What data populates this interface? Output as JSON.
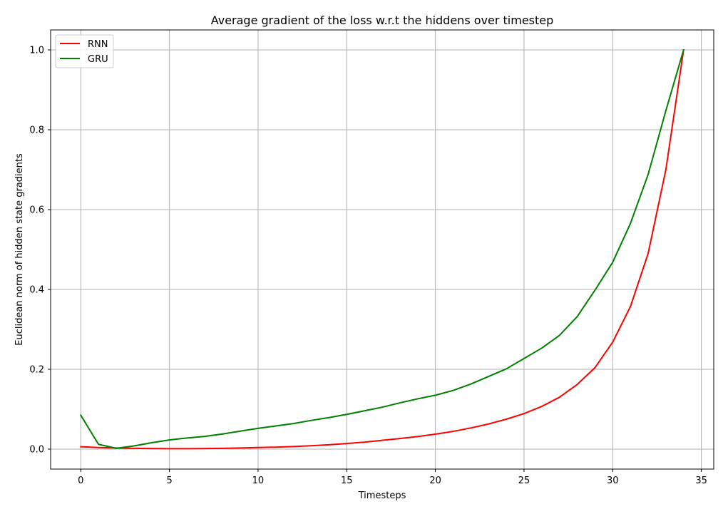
{
  "chart_data": {
    "type": "line",
    "title": "Average gradient of the loss w.r.t the hiddens over timestep",
    "xlabel": "Timesteps",
    "ylabel": "Euclidean norm of hidden state gradients",
    "xlim": [
      -1.7,
      35.7
    ],
    "ylim": [
      -0.05,
      1.05
    ],
    "xticks": [
      0,
      5,
      10,
      15,
      20,
      25,
      30,
      35
    ],
    "xtick_labels": [
      "0",
      "5",
      "10",
      "15",
      "20",
      "25",
      "30",
      "35"
    ],
    "yticks": [
      0.0,
      0.2,
      0.4,
      0.6,
      0.8,
      1.0
    ],
    "ytick_labels": [
      "0.0",
      "0.2",
      "0.4",
      "0.6",
      "0.8",
      "1.0"
    ],
    "grid": true,
    "legend_position": "top-left",
    "x": [
      0,
      1,
      2,
      3,
      4,
      5,
      6,
      7,
      8,
      9,
      10,
      11,
      12,
      13,
      14,
      15,
      16,
      17,
      18,
      19,
      20,
      21,
      22,
      23,
      24,
      25,
      26,
      27,
      28,
      29,
      30,
      31,
      32,
      33,
      34
    ],
    "series": [
      {
        "name": "RNN",
        "color": "#ff0000",
        "values": [
          0.006,
          0.004,
          0.003,
          0.002,
          0.0015,
          0.0012,
          0.0012,
          0.0015,
          0.002,
          0.0028,
          0.004,
          0.005,
          0.0065,
          0.0085,
          0.011,
          0.014,
          0.0175,
          0.022,
          0.0265,
          0.0315,
          0.0375,
          0.0445,
          0.053,
          0.063,
          0.075,
          0.089,
          0.107,
          0.13,
          0.162,
          0.204,
          0.268,
          0.357,
          0.49,
          0.7,
          1.0
        ]
      },
      {
        "name": "GRU",
        "color": "#008000",
        "values": [
          0.085,
          0.012,
          0.002,
          0.008,
          0.016,
          0.023,
          0.028,
          0.032,
          0.038,
          0.045,
          0.052,
          0.058,
          0.064,
          0.072,
          0.079,
          0.087,
          0.096,
          0.105,
          0.116,
          0.126,
          0.135,
          0.147,
          0.163,
          0.182,
          0.201,
          0.227,
          0.253,
          0.285,
          0.332,
          0.398,
          0.468,
          0.565,
          0.688,
          0.848,
          1.0
        ]
      }
    ]
  }
}
